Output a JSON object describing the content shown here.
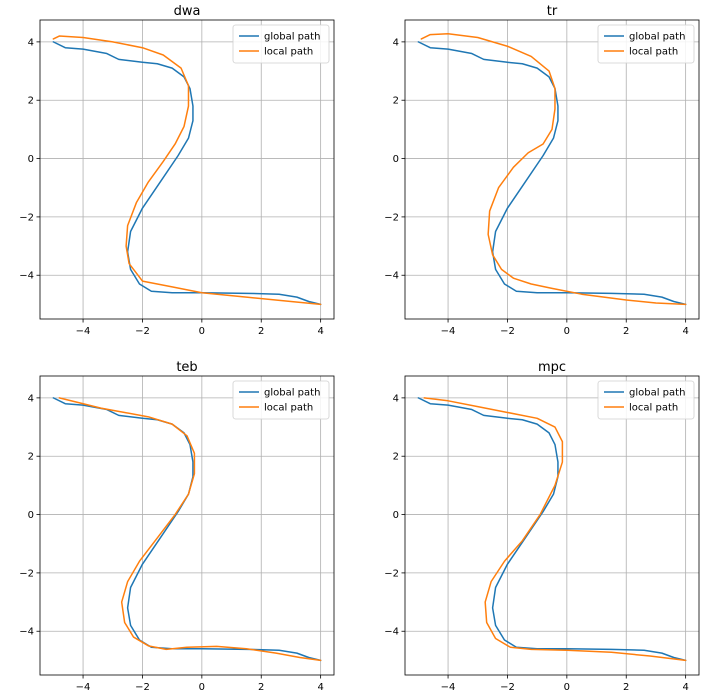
{
  "colors": {
    "global": "#1f77b4",
    "local": "#ff7f0e",
    "grid": "#b0b0b0"
  },
  "chart_data": [
    {
      "type": "line",
      "title": "dwa",
      "xlim": [
        -5.45,
        4.45
      ],
      "ylim": [
        -5.5,
        4.75
      ],
      "xticks": [
        -4,
        -2,
        0,
        2,
        4
      ],
      "yticks": [
        -4,
        -2,
        0,
        2,
        4
      ],
      "grid": true,
      "legend": "top-right",
      "series": [
        {
          "key": "global",
          "name": "global path",
          "points": [
            [
              -5.0,
              4.0
            ],
            [
              -4.6,
              3.8
            ],
            [
              -4.0,
              3.75
            ],
            [
              -3.2,
              3.6
            ],
            [
              -2.8,
              3.4
            ],
            [
              -2.0,
              3.3
            ],
            [
              -1.5,
              3.25
            ],
            [
              -1.0,
              3.1
            ],
            [
              -0.6,
              2.8
            ],
            [
              -0.4,
              2.4
            ],
            [
              -0.3,
              1.8
            ],
            [
              -0.3,
              1.3
            ],
            [
              -0.45,
              0.7
            ],
            [
              -0.8,
              0.1
            ],
            [
              -1.4,
              -0.8
            ],
            [
              -2.0,
              -1.7
            ],
            [
              -2.4,
              -2.5
            ],
            [
              -2.5,
              -3.2
            ],
            [
              -2.4,
              -3.8
            ],
            [
              -2.1,
              -4.3
            ],
            [
              -1.7,
              -4.55
            ],
            [
              -1.0,
              -4.6
            ],
            [
              0.0,
              -4.6
            ],
            [
              1.5,
              -4.62
            ],
            [
              2.6,
              -4.65
            ],
            [
              3.2,
              -4.75
            ],
            [
              3.6,
              -4.9
            ],
            [
              4.0,
              -5.0
            ]
          ]
        },
        {
          "key": "local",
          "name": "local path",
          "points": [
            [
              -5.0,
              4.1
            ],
            [
              -4.8,
              4.2
            ],
            [
              -4.0,
              4.15
            ],
            [
              -3.0,
              4.0
            ],
            [
              -2.0,
              3.8
            ],
            [
              -1.3,
              3.55
            ],
            [
              -0.7,
              3.1
            ],
            [
              -0.45,
              2.5
            ],
            [
              -0.45,
              1.8
            ],
            [
              -0.6,
              1.1
            ],
            [
              -0.9,
              0.5
            ],
            [
              -1.3,
              -0.1
            ],
            [
              -1.8,
              -0.8
            ],
            [
              -2.2,
              -1.5
            ],
            [
              -2.5,
              -2.3
            ],
            [
              -2.55,
              -3.0
            ],
            [
              -2.45,
              -3.6
            ],
            [
              -2.0,
              -4.2
            ],
            [
              -1.5,
              -4.3
            ],
            [
              -1.0,
              -4.4
            ],
            [
              0.0,
              -4.6
            ],
            [
              1.5,
              -4.75
            ],
            [
              3.0,
              -4.9
            ],
            [
              4.0,
              -5.0
            ]
          ]
        }
      ]
    },
    {
      "type": "line",
      "title": "tr",
      "xlim": [
        -5.45,
        4.45
      ],
      "ylim": [
        -5.5,
        4.75
      ],
      "xticks": [
        -4,
        -2,
        0,
        2,
        4
      ],
      "yticks": [
        -4,
        -2,
        0,
        2,
        4
      ],
      "grid": true,
      "legend": "top-right",
      "series": [
        {
          "key": "global",
          "name": "global path",
          "points": [
            [
              -5.0,
              4.0
            ],
            [
              -4.6,
              3.8
            ],
            [
              -4.0,
              3.75
            ],
            [
              -3.2,
              3.6
            ],
            [
              -2.8,
              3.4
            ],
            [
              -2.0,
              3.3
            ],
            [
              -1.5,
              3.25
            ],
            [
              -1.0,
              3.1
            ],
            [
              -0.6,
              2.8
            ],
            [
              -0.4,
              2.4
            ],
            [
              -0.3,
              1.8
            ],
            [
              -0.3,
              1.3
            ],
            [
              -0.45,
              0.7
            ],
            [
              -0.8,
              0.1
            ],
            [
              -1.4,
              -0.8
            ],
            [
              -2.0,
              -1.7
            ],
            [
              -2.4,
              -2.5
            ],
            [
              -2.5,
              -3.2
            ],
            [
              -2.4,
              -3.8
            ],
            [
              -2.1,
              -4.3
            ],
            [
              -1.7,
              -4.55
            ],
            [
              -1.0,
              -4.6
            ],
            [
              0.0,
              -4.6
            ],
            [
              1.5,
              -4.62
            ],
            [
              2.6,
              -4.65
            ],
            [
              3.2,
              -4.75
            ],
            [
              3.6,
              -4.9
            ],
            [
              4.0,
              -5.0
            ]
          ]
        },
        {
          "key": "local",
          "name": "local path",
          "points": [
            [
              -4.9,
              4.1
            ],
            [
              -4.6,
              4.25
            ],
            [
              -4.0,
              4.28
            ],
            [
              -3.0,
              4.15
            ],
            [
              -2.0,
              3.85
            ],
            [
              -1.2,
              3.5
            ],
            [
              -0.6,
              3.0
            ],
            [
              -0.4,
              2.4
            ],
            [
              -0.4,
              1.7
            ],
            [
              -0.5,
              1.0
            ],
            [
              -0.8,
              0.5
            ],
            [
              -1.3,
              0.2
            ],
            [
              -1.8,
              -0.3
            ],
            [
              -2.3,
              -1.0
            ],
            [
              -2.6,
              -1.8
            ],
            [
              -2.65,
              -2.6
            ],
            [
              -2.5,
              -3.3
            ],
            [
              -2.2,
              -3.8
            ],
            [
              -1.8,
              -4.1
            ],
            [
              -1.2,
              -4.3
            ],
            [
              -0.5,
              -4.45
            ],
            [
              0.5,
              -4.65
            ],
            [
              2.0,
              -4.85
            ],
            [
              3.0,
              -4.95
            ],
            [
              4.0,
              -5.0
            ]
          ]
        }
      ]
    },
    {
      "type": "line",
      "title": "teb",
      "xlim": [
        -5.45,
        4.45
      ],
      "ylim": [
        -5.5,
        4.75
      ],
      "xticks": [
        -4,
        -2,
        0,
        2,
        4
      ],
      "yticks": [
        -4,
        -2,
        0,
        2,
        4
      ],
      "grid": true,
      "legend": "top-right",
      "series": [
        {
          "key": "global",
          "name": "global path",
          "points": [
            [
              -5.0,
              4.0
            ],
            [
              -4.6,
              3.8
            ],
            [
              -4.0,
              3.75
            ],
            [
              -3.2,
              3.6
            ],
            [
              -2.8,
              3.4
            ],
            [
              -2.0,
              3.3
            ],
            [
              -1.5,
              3.25
            ],
            [
              -1.0,
              3.1
            ],
            [
              -0.6,
              2.8
            ],
            [
              -0.4,
              2.4
            ],
            [
              -0.3,
              1.8
            ],
            [
              -0.3,
              1.3
            ],
            [
              -0.45,
              0.7
            ],
            [
              -0.8,
              0.1
            ],
            [
              -1.4,
              -0.8
            ],
            [
              -2.0,
              -1.7
            ],
            [
              -2.4,
              -2.5
            ],
            [
              -2.5,
              -3.2
            ],
            [
              -2.4,
              -3.8
            ],
            [
              -2.1,
              -4.3
            ],
            [
              -1.7,
              -4.55
            ],
            [
              -1.0,
              -4.6
            ],
            [
              0.0,
              -4.6
            ],
            [
              1.5,
              -4.62
            ],
            [
              2.6,
              -4.65
            ],
            [
              3.2,
              -4.75
            ],
            [
              3.6,
              -4.9
            ],
            [
              4.0,
              -5.0
            ]
          ]
        },
        {
          "key": "local",
          "name": "local path",
          "points": [
            [
              -4.8,
              4.0
            ],
            [
              -4.2,
              3.85
            ],
            [
              -3.4,
              3.65
            ],
            [
              -2.6,
              3.5
            ],
            [
              -1.8,
              3.35
            ],
            [
              -1.0,
              3.1
            ],
            [
              -0.5,
              2.7
            ],
            [
              -0.25,
              2.1
            ],
            [
              -0.25,
              1.4
            ],
            [
              -0.45,
              0.7
            ],
            [
              -0.9,
              0.0
            ],
            [
              -1.5,
              -0.8
            ],
            [
              -2.1,
              -1.6
            ],
            [
              -2.5,
              -2.3
            ],
            [
              -2.7,
              -3.0
            ],
            [
              -2.6,
              -3.7
            ],
            [
              -2.3,
              -4.2
            ],
            [
              -1.8,
              -4.5
            ],
            [
              -1.2,
              -4.62
            ],
            [
              -0.5,
              -4.55
            ],
            [
              0.5,
              -4.52
            ],
            [
              1.5,
              -4.6
            ],
            [
              2.5,
              -4.75
            ],
            [
              3.3,
              -4.9
            ],
            [
              4.0,
              -5.0
            ]
          ]
        }
      ]
    },
    {
      "type": "line",
      "title": "mpc",
      "xlim": [
        -5.45,
        4.45
      ],
      "ylim": [
        -5.5,
        4.75
      ],
      "xticks": [
        -4,
        -2,
        0,
        2,
        4
      ],
      "yticks": [
        -4,
        -2,
        0,
        2,
        4
      ],
      "grid": true,
      "legend": "top-right",
      "series": [
        {
          "key": "global",
          "name": "global path",
          "points": [
            [
              -5.0,
              4.0
            ],
            [
              -4.6,
              3.8
            ],
            [
              -4.0,
              3.75
            ],
            [
              -3.2,
              3.6
            ],
            [
              -2.8,
              3.4
            ],
            [
              -2.0,
              3.3
            ],
            [
              -1.5,
              3.25
            ],
            [
              -1.0,
              3.1
            ],
            [
              -0.6,
              2.8
            ],
            [
              -0.4,
              2.4
            ],
            [
              -0.3,
              1.8
            ],
            [
              -0.3,
              1.3
            ],
            [
              -0.45,
              0.7
            ],
            [
              -0.8,
              0.1
            ],
            [
              -1.4,
              -0.8
            ],
            [
              -2.0,
              -1.7
            ],
            [
              -2.4,
              -2.5
            ],
            [
              -2.5,
              -3.2
            ],
            [
              -2.4,
              -3.8
            ],
            [
              -2.1,
              -4.3
            ],
            [
              -1.7,
              -4.55
            ],
            [
              -1.0,
              -4.6
            ],
            [
              0.0,
              -4.6
            ],
            [
              1.5,
              -4.62
            ],
            [
              2.6,
              -4.65
            ],
            [
              3.2,
              -4.75
            ],
            [
              3.6,
              -4.9
            ],
            [
              4.0,
              -5.0
            ]
          ]
        },
        {
          "key": "local",
          "name": "local path",
          "points": [
            [
              -4.8,
              4.0
            ],
            [
              -4.0,
              3.9
            ],
            [
              -3.0,
              3.7
            ],
            [
              -2.0,
              3.5
            ],
            [
              -1.0,
              3.3
            ],
            [
              -0.4,
              3.0
            ],
            [
              -0.15,
              2.5
            ],
            [
              -0.15,
              1.8
            ],
            [
              -0.4,
              1.0
            ],
            [
              -0.9,
              0.0
            ],
            [
              -1.5,
              -0.9
            ],
            [
              -2.1,
              -1.6
            ],
            [
              -2.55,
              -2.3
            ],
            [
              -2.75,
              -3.0
            ],
            [
              -2.7,
              -3.7
            ],
            [
              -2.4,
              -4.25
            ],
            [
              -1.9,
              -4.55
            ],
            [
              -1.2,
              -4.62
            ],
            [
              0.0,
              -4.65
            ],
            [
              1.5,
              -4.72
            ],
            [
              2.8,
              -4.85
            ],
            [
              4.0,
              -5.0
            ]
          ]
        }
      ]
    }
  ]
}
